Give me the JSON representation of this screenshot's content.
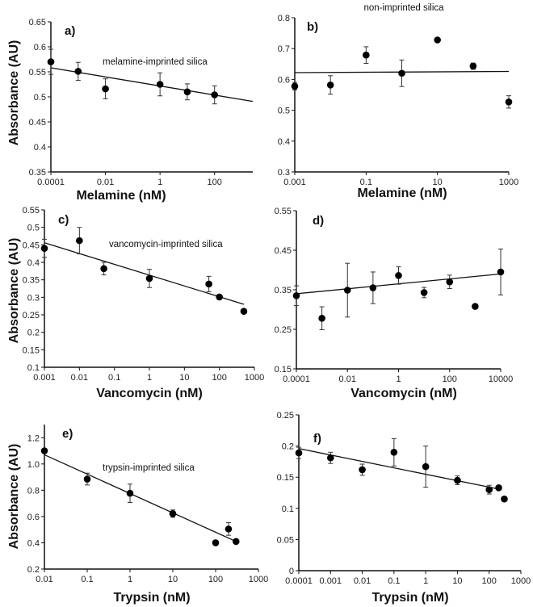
{
  "chart_data": [
    {
      "type": "scatter",
      "panel": "a)",
      "annotation": "melamine-imprinted silica",
      "xlabel": "Melamine (nM)",
      "ylabel": "Absorbance (AU)",
      "xscale": "log",
      "xlim_log10": [
        -4,
        3.4
      ],
      "ylim": [
        0.35,
        0.65
      ],
      "xticks": [
        {
          "v": 0.0001,
          "label": "0.0001"
        },
        {
          "v": 0.01,
          "label": "0.01"
        },
        {
          "v": 1,
          "label": "1"
        },
        {
          "v": 100,
          "label": "100"
        }
      ],
      "yticks": [
        {
          "v": 0.35,
          "label": "0.35"
        },
        {
          "v": 0.4,
          "label": "0.4"
        },
        {
          "v": 0.45,
          "label": "0.45"
        },
        {
          "v": 0.5,
          "label": "0.5"
        },
        {
          "v": 0.55,
          "label": "0.55"
        },
        {
          "v": 0.6,
          "label": "0.6"
        },
        {
          "v": 0.65,
          "label": "0.65"
        }
      ],
      "points": [
        {
          "x": 0.0001,
          "y": 0.57,
          "err": 0.025
        },
        {
          "x": 0.001,
          "y": 0.551,
          "err": 0.018
        },
        {
          "x": 0.01,
          "y": 0.516,
          "err": 0.02
        },
        {
          "x": 1,
          "y": 0.525,
          "err": 0.023
        },
        {
          "x": 10,
          "y": 0.51,
          "err": 0.016
        },
        {
          "x": 100,
          "y": 0.504,
          "err": 0.018
        }
      ],
      "fit": [
        {
          "x": 0.0001,
          "y": 0.558
        },
        {
          "x": 2500,
          "y": 0.491
        }
      ]
    },
    {
      "type": "scatter",
      "panel": "b)",
      "title": "non-imprinted silica",
      "xlabel": "Melamine (nM)",
      "xscale": "log",
      "xlim_log10": [
        -3,
        3
      ],
      "ylim": [
        0.3,
        0.8
      ],
      "xticks": [
        {
          "v": 0.001,
          "label": "0.001"
        },
        {
          "v": 0.1,
          "label": "0.1"
        },
        {
          "v": 10,
          "label": "10"
        },
        {
          "v": 1000,
          "label": "1000"
        }
      ],
      "yticks": [
        {
          "v": 0.3,
          "label": "0.3"
        },
        {
          "v": 0.4,
          "label": "0.4"
        },
        {
          "v": 0.5,
          "label": "0.5"
        },
        {
          "v": 0.6,
          "label": "0.6"
        },
        {
          "v": 0.7,
          "label": "0.7"
        },
        {
          "v": 0.8,
          "label": "0.8"
        }
      ],
      "points": [
        {
          "x": 0.001,
          "y": 0.578,
          "err": 0.012
        },
        {
          "x": 0.01,
          "y": 0.582,
          "err": 0.03
        },
        {
          "x": 0.1,
          "y": 0.679,
          "err": 0.027
        },
        {
          "x": 1,
          "y": 0.62,
          "err": 0.043
        },
        {
          "x": 10,
          "y": 0.728,
          "err": 0
        },
        {
          "x": 100,
          "y": 0.643,
          "err": 0.01
        },
        {
          "x": 1000,
          "y": 0.527,
          "err": 0.02
        }
      ],
      "fit": [
        {
          "x": 0.001,
          "y": 0.622
        },
        {
          "x": 1000,
          "y": 0.626
        }
      ]
    },
    {
      "type": "scatter",
      "panel": "c)",
      "annotation": "vancomycin-imprinted silica",
      "xlabel": "Vancomycin (nM)",
      "ylabel": "Absorbance (AU)",
      "xscale": "log",
      "xlim_log10": [
        -3,
        3
      ],
      "ylim": [
        0.1,
        0.55
      ],
      "xticks": [
        {
          "v": 0.001,
          "label": "0.001"
        },
        {
          "v": 0.01,
          "label": "0.01"
        },
        {
          "v": 0.1,
          "label": "0.1"
        },
        {
          "v": 1,
          "label": "1"
        },
        {
          "v": 10,
          "label": "10"
        },
        {
          "v": 100,
          "label": "100"
        },
        {
          "v": 1000,
          "label": "1000"
        }
      ],
      "yticks": [
        {
          "v": 0.1,
          "label": "0.1"
        },
        {
          "v": 0.15,
          "label": "0.15"
        },
        {
          "v": 0.2,
          "label": "0.2"
        },
        {
          "v": 0.25,
          "label": "0.25"
        },
        {
          "v": 0.3,
          "label": "0.3"
        },
        {
          "v": 0.35,
          "label": "0.35"
        },
        {
          "v": 0.4,
          "label": "0.4"
        },
        {
          "v": 0.45,
          "label": "0.45"
        },
        {
          "v": 0.5,
          "label": "0.5"
        },
        {
          "v": 0.55,
          "label": "0.55"
        }
      ],
      "points": [
        {
          "x": 0.001,
          "y": 0.44,
          "err": 0.026
        },
        {
          "x": 0.01,
          "y": 0.462,
          "err": 0.038
        },
        {
          "x": 0.05,
          "y": 0.382,
          "err": 0.018
        },
        {
          "x": 1,
          "y": 0.354,
          "err": 0.026
        },
        {
          "x": 50,
          "y": 0.338,
          "err": 0.022
        },
        {
          "x": 100,
          "y": 0.301,
          "err": 0
        },
        {
          "x": 500,
          "y": 0.26,
          "err": 0
        }
      ],
      "fit": [
        {
          "x": 0.001,
          "y": 0.456
        },
        {
          "x": 500,
          "y": 0.28
        }
      ]
    },
    {
      "type": "scatter",
      "panel": "d)",
      "xlabel": "Vancomycin (nM)",
      "xscale": "log",
      "xlim_log10": [
        -4,
        4
      ],
      "ylim": [
        0.15,
        0.55
      ],
      "xticks": [
        {
          "v": 0.0001,
          "label": "0.0001"
        },
        {
          "v": 0.01,
          "label": "0.01"
        },
        {
          "v": 1,
          "label": "1"
        },
        {
          "v": 100,
          "label": "100"
        },
        {
          "v": 10000,
          "label": "10000"
        }
      ],
      "yticks": [
        {
          "v": 0.15,
          "label": "0.15"
        },
        {
          "v": 0.25,
          "label": "0.25"
        },
        {
          "v": 0.35,
          "label": "0.35"
        },
        {
          "v": 0.45,
          "label": "0.45"
        },
        {
          "v": 0.55,
          "label": "0.55"
        }
      ],
      "points": [
        {
          "x": 0.0001,
          "y": 0.335,
          "err": 0.025
        },
        {
          "x": 0.001,
          "y": 0.278,
          "err": 0.029
        },
        {
          "x": 0.01,
          "y": 0.349,
          "err": 0.068
        },
        {
          "x": 0.1,
          "y": 0.355,
          "err": 0.04
        },
        {
          "x": 1,
          "y": 0.386,
          "err": 0.022
        },
        {
          "x": 10,
          "y": 0.343,
          "err": 0.013
        },
        {
          "x": 100,
          "y": 0.37,
          "err": 0.017
        },
        {
          "x": 1000,
          "y": 0.308,
          "err": 0
        },
        {
          "x": 10000,
          "y": 0.395,
          "err": 0.058
        }
      ],
      "fit": [
        {
          "x": 0.0001,
          "y": 0.34
        },
        {
          "x": 10000,
          "y": 0.39
        }
      ]
    },
    {
      "type": "scatter",
      "panel": "e)",
      "annotation": "trypsin-imprinted silica",
      "xlabel": "Trypsin (nM)",
      "ylabel": "Absorbance (AU)",
      "xscale": "log",
      "xlim_log10": [
        -2,
        3
      ],
      "ylim": [
        0.2,
        1.3
      ],
      "xticks": [
        {
          "v": 0.01,
          "label": "0.01"
        },
        {
          "v": 0.1,
          "label": "0.1"
        },
        {
          "v": 1,
          "label": "1"
        },
        {
          "v": 10,
          "label": "10"
        },
        {
          "v": 100,
          "label": "100"
        },
        {
          "v": 1000,
          "label": "1000"
        }
      ],
      "yticks": [
        {
          "v": 0.2,
          "label": "0.2"
        },
        {
          "v": 0.4,
          "label": "0.4"
        },
        {
          "v": 0.6,
          "label": "0.6"
        },
        {
          "v": 0.8,
          "label": "0.8"
        },
        {
          "v": 1.0,
          "label": "1.0"
        },
        {
          "v": 1.2,
          "label": "1.2"
        }
      ],
      "points": [
        {
          "x": 0.01,
          "y": 1.1,
          "err": 0
        },
        {
          "x": 0.1,
          "y": 0.885,
          "err": 0.045
        },
        {
          "x": 1,
          "y": 0.777,
          "err": 0.07
        },
        {
          "x": 10,
          "y": 0.622,
          "err": 0.028
        },
        {
          "x": 100,
          "y": 0.4,
          "err": 0
        },
        {
          "x": 200,
          "y": 0.505,
          "err": 0.048
        },
        {
          "x": 300,
          "y": 0.41,
          "err": 0
        }
      ],
      "fit": [
        {
          "x": 0.01,
          "y": 1.07
        },
        {
          "x": 300,
          "y": 0.41
        }
      ]
    },
    {
      "type": "scatter",
      "panel": "f)",
      "xlabel": "Trypsin (nM)",
      "xscale": "log",
      "xlim_log10": [
        -4,
        3
      ],
      "ylim": [
        0,
        0.25
      ],
      "xticks": [
        {
          "v": 0.0001,
          "label": "0.0001"
        },
        {
          "v": 0.001,
          "label": "0.001"
        },
        {
          "v": 0.01,
          "label": "0.01"
        },
        {
          "v": 0.1,
          "label": "0.1"
        },
        {
          "v": 1,
          "label": "1"
        },
        {
          "v": 10,
          "label": "10"
        },
        {
          "v": 100,
          "label": "100"
        },
        {
          "v": 1000,
          "label": "1000"
        }
      ],
      "yticks": [
        {
          "v": 0,
          "label": "0"
        },
        {
          "v": 0.05,
          "label": "0.05"
        },
        {
          "v": 0.1,
          "label": "0.1"
        },
        {
          "v": 0.15,
          "label": "0.15"
        },
        {
          "v": 0.2,
          "label": "0.2"
        },
        {
          "v": 0.25,
          "label": "0.25"
        }
      ],
      "points": [
        {
          "x": 0.0001,
          "y": 0.189,
          "err": 0.009
        },
        {
          "x": 0.001,
          "y": 0.181,
          "err": 0.009
        },
        {
          "x": 0.01,
          "y": 0.162,
          "err": 0.009
        },
        {
          "x": 0.1,
          "y": 0.19,
          "err": 0.022
        },
        {
          "x": 1,
          "y": 0.167,
          "err": 0.033
        },
        {
          "x": 10,
          "y": 0.145,
          "err": 0.007
        },
        {
          "x": 100,
          "y": 0.13,
          "err": 0.007
        },
        {
          "x": 200,
          "y": 0.133,
          "err": 0
        },
        {
          "x": 300,
          "y": 0.115,
          "err": 0
        }
      ],
      "fit": [
        {
          "x": 0.0001,
          "y": 0.196
        },
        {
          "x": 200,
          "y": 0.131
        }
      ]
    }
  ]
}
